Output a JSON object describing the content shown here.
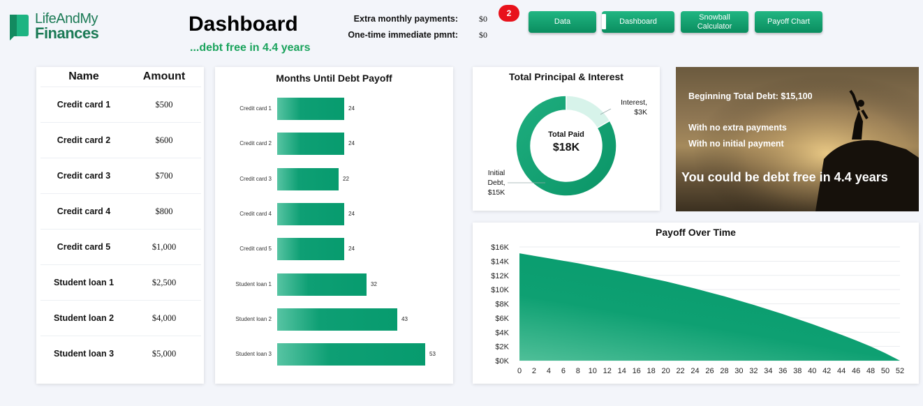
{
  "logo": {
    "line1": "LifeAndMy",
    "line2": "Finances"
  },
  "header": {
    "title": "Dashboard",
    "subtitle": "...debt free in 4.4 years",
    "extra_label": "Extra monthly payments:",
    "extra_value": "$0",
    "onetime_label": "One-time immediate pmnt:",
    "onetime_value": "$0",
    "badge": "2"
  },
  "nav": {
    "data": "Data",
    "dashboard": "Dashboard",
    "snowball": "Snowball Calculator",
    "payoff": "Payoff Chart"
  },
  "table": {
    "col_name": "Name",
    "col_amount": "Amount",
    "rows": [
      {
        "name": "Credit card 1",
        "amount": "$500"
      },
      {
        "name": "Credit card 2",
        "amount": "$600"
      },
      {
        "name": "Credit card 3",
        "amount": "$700"
      },
      {
        "name": "Credit card 4",
        "amount": "$800"
      },
      {
        "name": "Credit card 5",
        "amount": "$1,000"
      },
      {
        "name": "Student loan 1",
        "amount": "$2,500"
      },
      {
        "name": "Student loan 2",
        "amount": "$4,000"
      },
      {
        "name": "Student loan 3",
        "amount": "$5,000"
      }
    ]
  },
  "photo": {
    "beginning": "Beginning Total Debt: $15,100",
    "no_extra": "With no extra payments",
    "no_initial": "With no initial payment",
    "headline": "You could be debt free in 4.4 years"
  },
  "colors": {
    "accent": "#0a9e6e",
    "accent_light": "#d7f3ea",
    "badge": "#e8121b"
  },
  "chart_data": [
    {
      "type": "bar",
      "orientation": "horizontal",
      "title": "Months Until Debt Payoff",
      "categories": [
        "Credit card 1",
        "Credit card 2",
        "Credit card 3",
        "Credit card 4",
        "Credit card 5",
        "Student loan 1",
        "Student loan 2",
        "Student loan 3"
      ],
      "values": [
        24,
        24,
        22,
        24,
        24,
        32,
        43,
        53
      ]
    },
    {
      "type": "pie",
      "subtype": "donut",
      "title": "Total Principal & Interest",
      "center_label": "Total Paid",
      "center_value": "$18K",
      "slices": [
        {
          "name": "Initial Debt",
          "label": [
            "Initial",
            "Debt,",
            "$15K"
          ],
          "value": 15
        },
        {
          "name": "Interest",
          "label": [
            "Interest,",
            "$3K"
          ],
          "value": 3
        }
      ]
    },
    {
      "type": "area",
      "title": "Payoff Over Time",
      "x": [
        0,
        2,
        4,
        6,
        8,
        10,
        12,
        14,
        16,
        18,
        20,
        22,
        24,
        26,
        28,
        30,
        32,
        34,
        36,
        38,
        40,
        42,
        44,
        46,
        48,
        50,
        52
      ],
      "y": [
        15100,
        14750,
        14400,
        14050,
        13700,
        13300,
        12900,
        12500,
        12050,
        11600,
        11150,
        10650,
        10150,
        9600,
        9050,
        8450,
        7850,
        7200,
        6550,
        5850,
        5150,
        4400,
        3650,
        2850,
        2000,
        1050,
        0
      ],
      "xticks": [
        "0",
        "2",
        "4",
        "6",
        "8",
        "10",
        "12",
        "14",
        "16",
        "18",
        "20",
        "22",
        "24",
        "26",
        "28",
        "30",
        "32",
        "34",
        "36",
        "38",
        "40",
        "42",
        "44",
        "46",
        "48",
        "50",
        "52"
      ],
      "yticks": [
        "$0K",
        "$2K",
        "$4K",
        "$6K",
        "$8K",
        "$10K",
        "$12K",
        "$14K",
        "$16K"
      ],
      "ylim": [
        0,
        16000
      ],
      "xlim": [
        0,
        52
      ],
      "grid": true
    }
  ]
}
